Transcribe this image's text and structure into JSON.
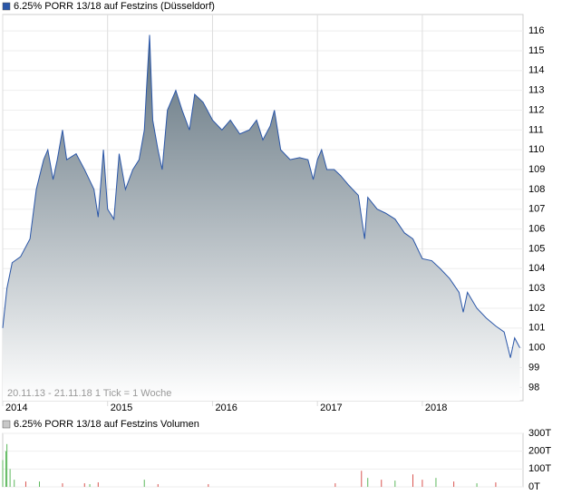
{
  "chart_data": [
    {
      "type": "area",
      "title": "6.25% PORR 13/18 auf Festzins (Düsseldorf)",
      "note": "20.11.13 - 21.11.18   1 Tick = 1 Woche",
      "color": "#2a56a8",
      "fill_top": "#5e707c",
      "legend_color": "#2a56a8",
      "grid": true,
      "x": [
        2014.0,
        2014.04,
        2014.09,
        2014.17,
        2014.26,
        2014.32,
        2014.39,
        2014.43,
        2014.48,
        2014.52,
        2014.57,
        2014.61,
        2014.7,
        2014.78,
        2014.87,
        2014.91,
        2014.96,
        2015.0,
        2015.06,
        2015.11,
        2015.17,
        2015.24,
        2015.3,
        2015.35,
        2015.37,
        2015.4,
        2015.43,
        2015.48,
        2015.52,
        2015.57,
        2015.61,
        2015.65,
        2015.71,
        2015.78,
        2015.83,
        2015.91,
        2016.0,
        2016.09,
        2016.17,
        2016.26,
        2016.35,
        2016.42,
        2016.48,
        2016.55,
        2016.59,
        2016.65,
        2016.74,
        2016.83,
        2016.91,
        2016.96,
        2017.0,
        2017.04,
        2017.09,
        2017.16,
        2017.22,
        2017.3,
        2017.39,
        2017.45,
        2017.48,
        2017.57,
        2017.65,
        2017.74,
        2017.83,
        2017.91,
        2018.0,
        2018.09,
        2018.17,
        2018.26,
        2018.35,
        2018.39,
        2018.43,
        2018.52,
        2018.61,
        2018.7,
        2018.78,
        2018.84,
        2018.88,
        2018.93
      ],
      "values": [
        101,
        103,
        104.3,
        104.6,
        105.5,
        108,
        109.5,
        110,
        108.5,
        109.5,
        111,
        109.5,
        109.8,
        109,
        108,
        106.6,
        110,
        107,
        106.5,
        109.8,
        108,
        109,
        109.5,
        111,
        113,
        115.8,
        111.5,
        110,
        109,
        112,
        112.5,
        113,
        112,
        111,
        112.8,
        112.4,
        111.5,
        111,
        111.5,
        110.8,
        111,
        111.5,
        110.5,
        111.2,
        112,
        110,
        109.5,
        109.6,
        109.5,
        108.5,
        109.5,
        110,
        109,
        109,
        108.7,
        108.2,
        107.7,
        105.5,
        107.6,
        107,
        106.8,
        106.5,
        105.8,
        105.5,
        104.5,
        104.4,
        104,
        103.5,
        102.8,
        101.8,
        102.8,
        102,
        101.5,
        101.1,
        100.8,
        99.5,
        100.5,
        100
      ],
      "xlim": [
        2014,
        2018.96
      ],
      "xticks": [
        2014,
        2015,
        2016,
        2017,
        2018
      ],
      "ylim": [
        97.33,
        116.83
      ],
      "yticks": [
        98,
        99,
        100,
        101,
        102,
        103,
        104,
        105,
        106,
        107,
        108,
        109,
        110,
        111,
        112,
        113,
        114,
        115,
        116
      ]
    },
    {
      "type": "bar",
      "title": "6.25% PORR 13/18 auf Festzins Volumen",
      "legend_color": "#c8c8c8",
      "grid": true,
      "x": [
        2014.0,
        2014.03,
        2014.04,
        2014.07,
        2014.11,
        2014.22,
        2014.35,
        2014.57,
        2014.78,
        2014.83,
        2014.91,
        2015.35,
        2015.48,
        2015.96,
        2017.17,
        2017.42,
        2017.48,
        2017.61,
        2017.74,
        2017.91,
        2018.0,
        2018.13,
        2018.3,
        2018.52,
        2018.7
      ],
      "values": [
        150000,
        200000,
        240000,
        100000,
        40000,
        30000,
        30000,
        20000,
        20000,
        15000,
        25000,
        40000,
        15000,
        15000,
        20000,
        90000,
        50000,
        40000,
        35000,
        70000,
        40000,
        50000,
        30000,
        20000,
        25000
      ],
      "colors": [
        "#5cb85c",
        "#5cb85c",
        "#5cb85c",
        "#5cb85c",
        "#5cb85c",
        "#d9534f",
        "#5cb85c",
        "#d9534f",
        "#d9534f",
        "#5cb85c",
        "#d9534f",
        "#5cb85c",
        "#d9534f",
        "#d9534f",
        "#d9534f",
        "#d9534f",
        "#5cb85c",
        "#d9534f",
        "#5cb85c",
        "#d9534f",
        "#d9534f",
        "#5cb85c",
        "#d9534f",
        "#5cb85c",
        "#d9534f"
      ],
      "xlim": [
        2014,
        2018.96
      ],
      "ylim": [
        0,
        300000
      ],
      "yticks": [
        {
          "value": 0,
          "label": "0T"
        },
        {
          "value": 100000,
          "label": "100T"
        },
        {
          "value": 200000,
          "label": "200T"
        },
        {
          "value": 300000,
          "label": "300T"
        }
      ]
    }
  ]
}
